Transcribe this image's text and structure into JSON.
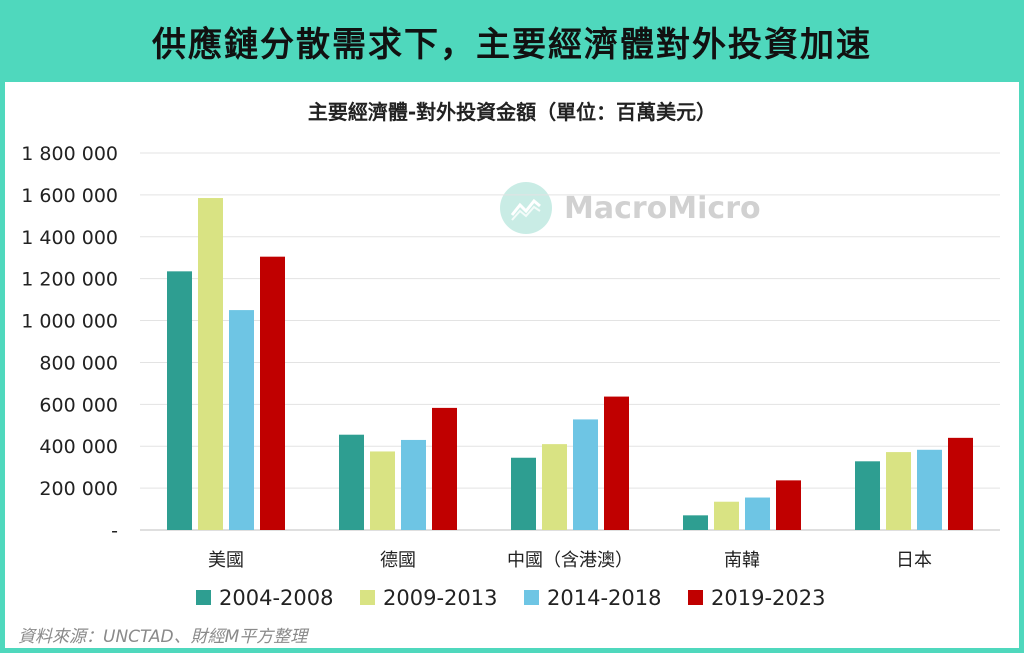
{
  "banner": {
    "title": "供應鏈分散需求下，主要經濟體對外投資加速"
  },
  "source": "資料來源：UNCTAD、財經M平方整理",
  "watermark": {
    "text": "MacroMicro"
  },
  "chart_data": {
    "type": "bar",
    "title": "主要經濟體-對外投資金額（單位：百萬美元）",
    "categories": [
      "美國",
      "德國",
      "中國（含港澳）",
      "南韓",
      "日本"
    ],
    "series": [
      {
        "name": "2004-2008",
        "color": "#2e9e91",
        "values": [
          1235000,
          455000,
          345000,
          70000,
          328000
        ]
      },
      {
        "name": "2009-2013",
        "color": "#d9e383",
        "values": [
          1585000,
          375000,
          410000,
          135000,
          372000
        ]
      },
      {
        "name": "2014-2018",
        "color": "#6ec5e4",
        "values": [
          1050000,
          430000,
          528000,
          155000,
          383000
        ]
      },
      {
        "name": "2019-2023",
        "color": "#c00000",
        "values": [
          1305000,
          583000,
          637000,
          237000,
          440000
        ]
      }
    ],
    "yticks": [
      "-",
      "200 000",
      "400 000",
      "600 000",
      "800 000",
      "1 000 000",
      "1 200 000",
      "1 400 000",
      "1 600 000",
      "1 800 000"
    ],
    "ylim": [
      0,
      1800000
    ],
    "grid": true,
    "legend_position": "bottom"
  }
}
